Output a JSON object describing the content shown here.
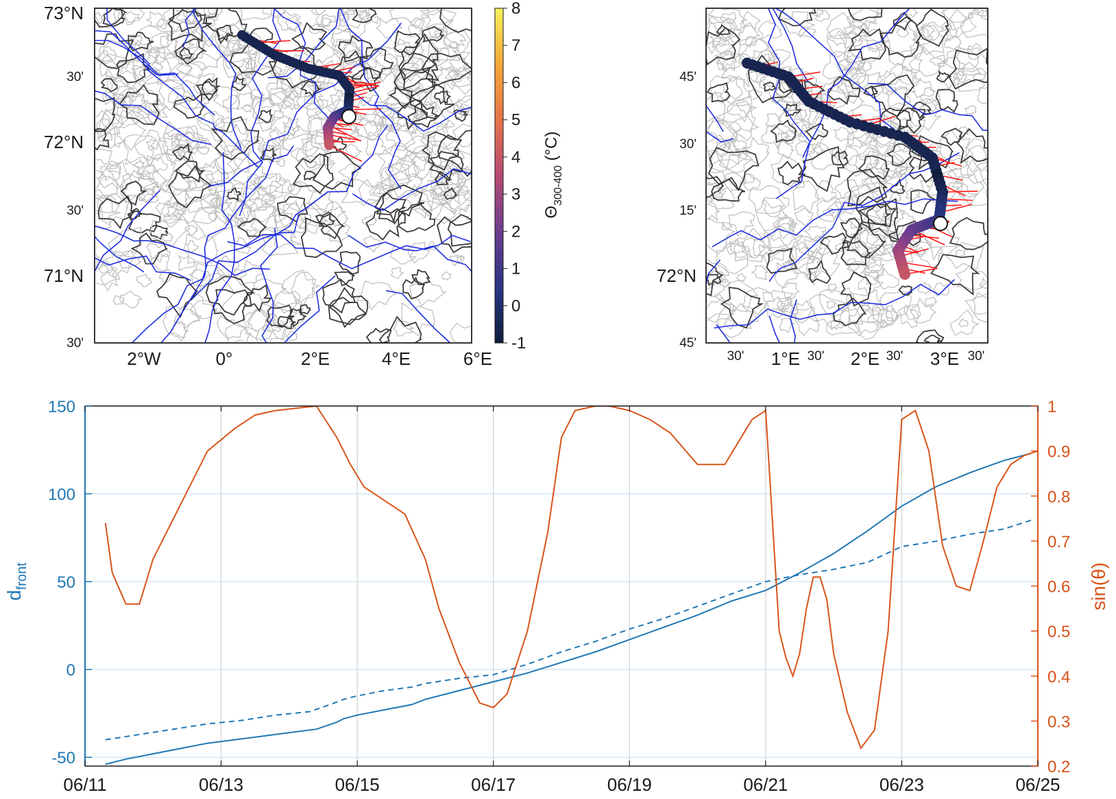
{
  "map_left": {
    "lat_labels": [
      "73°N",
      "30'",
      "72°N",
      "30'",
      "71°N",
      "30'"
    ],
    "lon_labels": [
      "2°W",
      "0°",
      "2°E",
      "4°E",
      "6°E"
    ]
  },
  "colorbar": {
    "ticks": [
      "8",
      "7",
      "6",
      "5",
      "4",
      "3",
      "2",
      "1",
      "0",
      "-1"
    ],
    "label": "Θ",
    "label_sub": "300-400",
    "label_unit": "(°C)",
    "range": [
      -1,
      8
    ],
    "colors": [
      "#0f1e3a",
      "#283583",
      "#6b3c8f",
      "#b64b73",
      "#e4724a",
      "#f6a736",
      "#f7f25a"
    ]
  },
  "map_right": {
    "lat_labels": [
      "45'",
      "30'",
      "15'",
      "72°N",
      "45'"
    ],
    "lon_labels": [
      "30'",
      "1°E",
      "30'",
      "2°E",
      "30'",
      "3°E",
      "30'"
    ]
  },
  "chart_data": {
    "type": "line",
    "x_tick_labels": [
      "06/11",
      "06/13",
      "06/15",
      "06/17",
      "06/19",
      "06/21",
      "06/23",
      "06/25"
    ],
    "xlim": [
      0,
      14
    ],
    "left_axis": {
      "label": "d",
      "label_sub": "front",
      "ylim": [
        -55,
        150
      ],
      "ticks": [
        "150",
        "100",
        "50",
        "0",
        "-50"
      ],
      "tick_values": [
        150,
        100,
        50,
        0,
        -50
      ],
      "color": "#1f77b4"
    },
    "right_axis": {
      "label": "sin(θ)",
      "ylim": [
        0.2,
        1.0
      ],
      "ticks": [
        "1",
        "0.9",
        "0.8",
        "0.7",
        "0.6",
        "0.5",
        "0.4",
        "0.3",
        "0.2"
      ],
      "tick_values": [
        1,
        0.9,
        0.8,
        0.7,
        0.6,
        0.5,
        0.4,
        0.3,
        0.2
      ],
      "color": "#d95319"
    },
    "series": [
      {
        "style": "solid",
        "axis": "left",
        "color": "#1f77b4",
        "x": [
          0.3,
          0.6,
          1.0,
          1.4,
          1.8,
          2.2,
          2.6,
          3.0,
          3.4,
          3.7,
          3.8,
          4.0,
          4.4,
          4.8,
          5.0,
          5.5,
          6.0,
          6.5,
          7.0,
          7.5,
          8.0,
          8.5,
          9.0,
          9.5,
          10.0,
          10.5,
          11.0,
          11.5,
          12.0,
          12.5,
          13.0,
          13.5,
          13.9
        ],
        "y": [
          -54,
          -51,
          -48,
          -45,
          -42,
          -40,
          -38,
          -36,
          -34,
          -30,
          -28,
          -26,
          -23,
          -20,
          -17,
          -12,
          -7,
          -2,
          4,
          10,
          17,
          24,
          31,
          39,
          45,
          55,
          66,
          79,
          93,
          104,
          112,
          119,
          123
        ]
      },
      {
        "style": "dashed",
        "axis": "left",
        "color": "#1f77b4",
        "x": [
          0.3,
          0.8,
          1.3,
          1.8,
          2.3,
          2.8,
          3.3,
          3.6,
          3.8,
          4.0,
          4.4,
          4.8,
          5.0,
          5.5,
          6.0,
          6.5,
          7.0,
          7.5,
          8.0,
          8.5,
          9.0,
          9.5,
          10.0,
          10.5,
          11.0,
          11.5,
          12.0,
          12.5,
          13.0,
          13.5,
          13.9
        ],
        "y": [
          -40,
          -37,
          -34,
          -31,
          -29,
          -26,
          -24,
          -20,
          -17,
          -15,
          -12,
          -10,
          -8,
          -5,
          -3,
          3,
          10,
          16,
          23,
          29,
          36,
          43,
          50,
          54,
          57,
          61,
          70,
          73,
          77,
          80,
          85
        ]
      },
      {
        "style": "solid",
        "axis": "right",
        "color": "#d95319",
        "x": [
          0.3,
          0.4,
          0.6,
          0.8,
          1.0,
          1.4,
          1.8,
          2.2,
          2.5,
          2.8,
          3.1,
          3.4,
          3.7,
          3.9,
          4.1,
          4.4,
          4.7,
          5.0,
          5.2,
          5.5,
          5.8,
          6.0,
          6.2,
          6.5,
          6.8,
          7.0,
          7.2,
          7.5,
          7.7,
          8.0,
          8.3,
          8.6,
          9.0,
          9.4,
          9.8,
          10.0,
          10.2,
          10.3,
          10.4,
          10.5,
          10.6,
          10.7,
          10.8,
          10.9,
          11.0,
          11.2,
          11.4,
          11.6,
          11.8,
          12.0,
          12.2,
          12.4,
          12.6,
          12.8,
          13.0,
          13.2,
          13.4,
          13.6,
          13.8,
          14.0
        ],
        "y": [
          0.74,
          0.63,
          0.56,
          0.56,
          0.66,
          0.78,
          0.9,
          0.95,
          0.98,
          0.99,
          0.995,
          1.0,
          0.93,
          0.87,
          0.82,
          0.79,
          0.76,
          0.66,
          0.55,
          0.43,
          0.34,
          0.33,
          0.36,
          0.5,
          0.72,
          0.93,
          0.99,
          1.0,
          1.0,
          0.99,
          0.97,
          0.94,
          0.87,
          0.87,
          0.97,
          0.99,
          0.5,
          0.44,
          0.4,
          0.45,
          0.55,
          0.62,
          0.62,
          0.57,
          0.45,
          0.32,
          0.24,
          0.28,
          0.5,
          0.97,
          0.99,
          0.9,
          0.69,
          0.6,
          0.59,
          0.7,
          0.82,
          0.87,
          0.89,
          0.9
        ]
      }
    ]
  }
}
